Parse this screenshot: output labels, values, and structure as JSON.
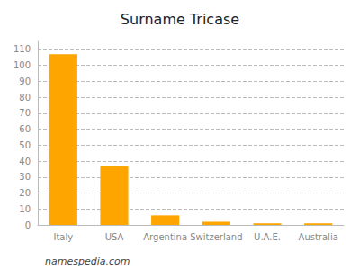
{
  "chart_data": {
    "type": "bar",
    "title": "Surname Tricase",
    "categories": [
      "Italy",
      "USA",
      "Argentina",
      "Switzerland",
      "U.A.E.",
      "Australia"
    ],
    "values": [
      107,
      37,
      6,
      2,
      1,
      1
    ],
    "color": "#FFA500",
    "ylim": [
      0,
      115
    ],
    "yticks": [
      0,
      10,
      20,
      30,
      40,
      50,
      60,
      70,
      80,
      90,
      100,
      110
    ],
    "grid": true,
    "annotations": [
      "namespedia.com"
    ]
  }
}
